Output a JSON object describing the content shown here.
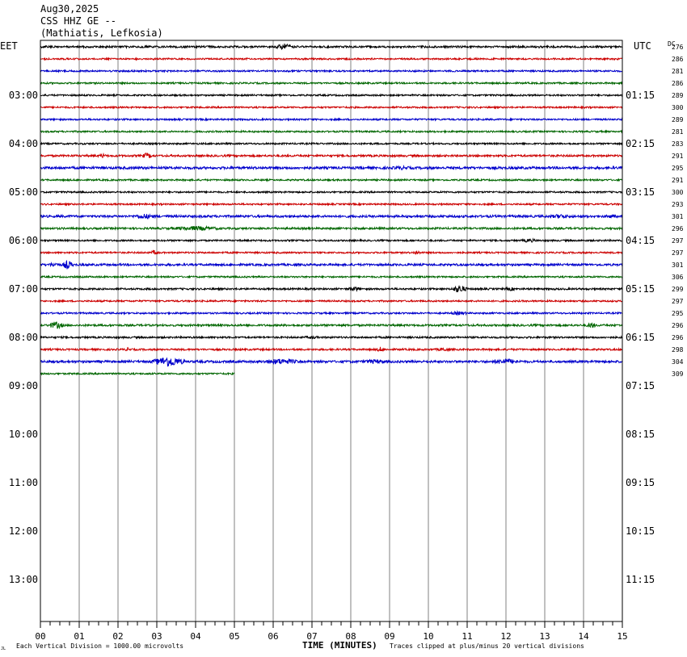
{
  "header": {
    "date": "Aug30,2025",
    "station": "CSS HHZ GE --",
    "location": "(Mathiatis, Lefkosia)"
  },
  "left_timezone": "EET",
  "right_timezone": "UTC",
  "dc_label": "DC",
  "footer": {
    "left_note": "Each Vertical Division = 1000.00 microvolts",
    "xlabel": "TIME (MINUTES)",
    "right_note": "Traces clipped at plus/minus 20 vertical divisions",
    "corner_mark": "JL"
  },
  "colors": {
    "black": "#000000",
    "red": "#cc0000",
    "blue": "#0000cc",
    "green": "#006600",
    "grid": "#808080"
  },
  "chart_data": {
    "type": "helicorder",
    "x": [
      0,
      1,
      2,
      3,
      4,
      5,
      6,
      7,
      8,
      9,
      10,
      11,
      12,
      13,
      14,
      15
    ],
    "x_tick_labels": [
      "00",
      "01",
      "02",
      "03",
      "04",
      "05",
      "06",
      "07",
      "08",
      "09",
      "10",
      "11",
      "12",
      "13",
      "14",
      "15"
    ],
    "xlim": [
      0,
      15
    ],
    "xlabel": "TIME (MINUTES)",
    "minutes_per_line": 15,
    "total_lines": 48,
    "left_hour_labels": [
      "03:00",
      "04:00",
      "05:00",
      "06:00",
      "07:00",
      "08:00",
      "09:00",
      "10:00",
      "11:00",
      "12:00",
      "13:00"
    ],
    "right_hour_labels": [
      "01:15",
      "02:15",
      "03:15",
      "04:15",
      "05:15",
      "06:15",
      "07:15",
      "08:15",
      "09:15",
      "10:15",
      "11:15"
    ],
    "first_hour_label_line": 4,
    "trace_color_cycle": [
      "black",
      "red",
      "blue",
      "green"
    ],
    "traces": [
      {
        "dc": 276,
        "amp": 1.2,
        "events": [
          {
            "t": 6.3,
            "amp": 4,
            "dur": 0.4
          }
        ]
      },
      {
        "dc": 286,
        "amp": 1.0,
        "events": []
      },
      {
        "dc": 281,
        "amp": 1.0,
        "events": []
      },
      {
        "dc": 286,
        "amp": 1.0,
        "events": []
      },
      {
        "dc": 289,
        "amp": 1.0,
        "events": []
      },
      {
        "dc": 300,
        "amp": 1.0,
        "events": []
      },
      {
        "dc": 289,
        "amp": 1.0,
        "events": []
      },
      {
        "dc": 281,
        "amp": 1.0,
        "events": []
      },
      {
        "dc": 283,
        "amp": 1.0,
        "events": []
      },
      {
        "dc": 291,
        "amp": 1.2,
        "events": [
          {
            "t": 1.6,
            "amp": 3,
            "dur": 0.15
          },
          {
            "t": 2.75,
            "amp": 4,
            "dur": 0.2
          }
        ]
      },
      {
        "dc": 295,
        "amp": 1.5,
        "events": [
          {
            "t": 9.3,
            "amp": 2.5,
            "dur": 0.6
          }
        ]
      },
      {
        "dc": 291,
        "amp": 1.0,
        "events": []
      },
      {
        "dc": 300,
        "amp": 1.0,
        "events": []
      },
      {
        "dc": 293,
        "amp": 1.0,
        "events": []
      },
      {
        "dc": 301,
        "amp": 1.4,
        "events": [
          {
            "t": 2.7,
            "amp": 3.5,
            "dur": 0.5
          },
          {
            "t": 13.4,
            "amp": 3,
            "dur": 0.5
          },
          {
            "t": 14.7,
            "amp": 2.5,
            "dur": 0.3
          }
        ]
      },
      {
        "dc": 296,
        "amp": 1.2,
        "events": [
          {
            "t": 4.0,
            "amp": 3,
            "dur": 1.2
          }
        ]
      },
      {
        "dc": 297,
        "amp": 1.0,
        "events": [
          {
            "t": 12.6,
            "amp": 2.5,
            "dur": 0.4
          }
        ]
      },
      {
        "dc": 297,
        "amp": 1.0,
        "events": [
          {
            "t": 2.95,
            "amp": 3,
            "dur": 0.2
          },
          {
            "t": 9.7,
            "amp": 2.5,
            "dur": 0.2
          }
        ]
      },
      {
        "dc": 301,
        "amp": 1.3,
        "events": [
          {
            "t": 0.7,
            "amp": 6,
            "dur": 0.2
          },
          {
            "t": 0.35,
            "amp": 3,
            "dur": 0.3
          }
        ]
      },
      {
        "dc": 306,
        "amp": 1.0,
        "events": []
      },
      {
        "dc": 299,
        "amp": 1.1,
        "events": [
          {
            "t": 8.1,
            "amp": 3,
            "dur": 0.3
          },
          {
            "t": 10.8,
            "amp": 5,
            "dur": 0.3
          },
          {
            "t": 12.1,
            "amp": 2.5,
            "dur": 0.3
          }
        ]
      },
      {
        "dc": 297,
        "amp": 1.0,
        "events": []
      },
      {
        "dc": 295,
        "amp": 1.0,
        "events": [
          {
            "t": 10.8,
            "amp": 2.5,
            "dur": 0.4
          }
        ]
      },
      {
        "dc": 296,
        "amp": 1.2,
        "events": [
          {
            "t": 0.4,
            "amp": 5,
            "dur": 0.3
          },
          {
            "t": 14.2,
            "amp": 4,
            "dur": 0.2
          }
        ]
      },
      {
        "dc": 296,
        "amp": 1.1,
        "events": [
          {
            "t": 7.0,
            "amp": 2,
            "dur": 0.5
          }
        ]
      },
      {
        "dc": 298,
        "amp": 1.1,
        "events": [
          {
            "t": 2.25,
            "amp": 3,
            "dur": 0.1
          },
          {
            "t": 8.75,
            "amp": 3.5,
            "dur": 0.15
          },
          {
            "t": 10.4,
            "amp": 2.5,
            "dur": 0.3
          }
        ]
      },
      {
        "dc": 304,
        "amp": 1.4,
        "events": [
          {
            "t": 3.3,
            "amp": 7,
            "dur": 0.6
          },
          {
            "t": 6.2,
            "amp": 4,
            "dur": 0.8
          },
          {
            "t": 8.6,
            "amp": 3,
            "dur": 0.6
          },
          {
            "t": 12.0,
            "amp": 4,
            "dur": 0.6
          }
        ]
      },
      {
        "dc": 309,
        "amp": 1.0,
        "events": [],
        "end": 5.0
      }
    ]
  }
}
